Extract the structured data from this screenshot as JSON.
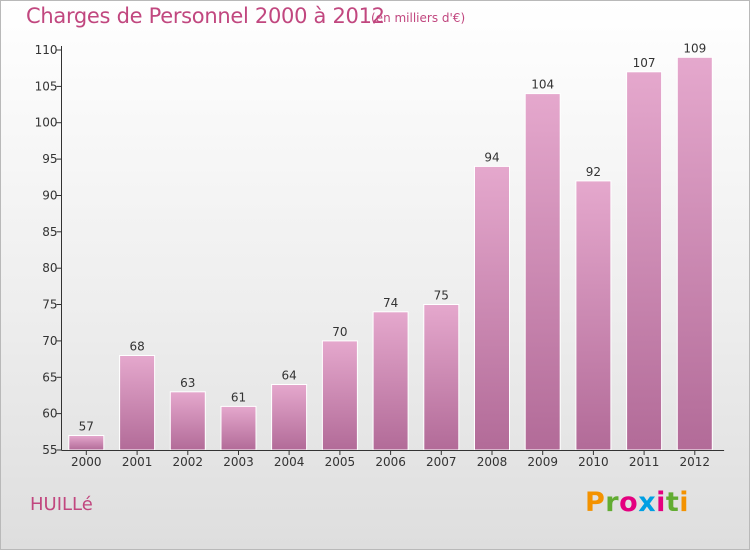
{
  "header": {
    "title": "Charges de Personnel 2000 à 2012",
    "subtitle": "(en milliers d'€)"
  },
  "footer": {
    "commune": "HUILLé",
    "logo_letters": [
      "P",
      "r",
      "o",
      "x",
      "i",
      "t",
      "i"
    ]
  },
  "colors": {
    "title": "#c1477f",
    "bar_top": "#e5a8cd",
    "bar_bottom": "#b26b98",
    "axis": "#333333"
  },
  "chart_data": {
    "type": "bar",
    "title": "Charges de Personnel 2000 à 2012",
    "subtitle": "(en milliers d'€)",
    "xlabel": "",
    "ylabel": "",
    "categories": [
      "2000",
      "2001",
      "2002",
      "2003",
      "2004",
      "2005",
      "2006",
      "2007",
      "2008",
      "2009",
      "2010",
      "2011",
      "2012"
    ],
    "values": [
      57,
      68,
      63,
      61,
      64,
      70,
      74,
      75,
      94,
      104,
      92,
      107,
      109
    ],
    "ylim": [
      55,
      110
    ],
    "yticks": [
      55,
      60,
      65,
      70,
      75,
      80,
      85,
      90,
      95,
      100,
      105,
      110
    ],
    "grid": false,
    "data_labels": true
  }
}
